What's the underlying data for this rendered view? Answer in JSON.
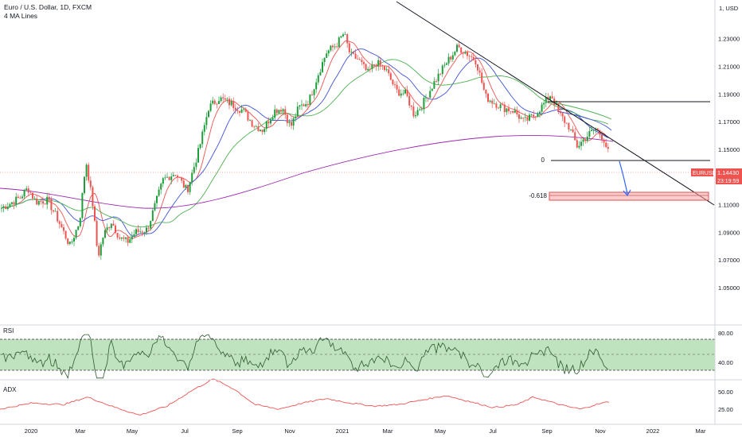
{
  "header": {
    "symbol": "Euro / U.S. Dollar, 1D, FXCM",
    "indicator": "4 MA Lines"
  },
  "price_axis": {
    "unit_label": "1, USD",
    "ticks": [
      "1.23000",
      "1.21000",
      "1.19000",
      "1.17000",
      "1.15000",
      "1.13000",
      "1.11000",
      "1.09000",
      "1.07000",
      "1.05000"
    ]
  },
  "price_tag": {
    "symbol": "EURUSD",
    "price": "1.14430",
    "countdown": "23:19:59"
  },
  "fib": {
    "level0": "0",
    "level_ext": "-0.618"
  },
  "rsi": {
    "label": "RSI",
    "ticks": [
      "80.00",
      "40.00"
    ]
  },
  "adx": {
    "label": "ADX",
    "ticks": [
      "50.00",
      "25.00"
    ]
  },
  "x_axis": {
    "ticks": [
      "2020",
      "Mar",
      "May",
      "Jul",
      "Sep",
      "Nov",
      "2021",
      "Mar",
      "May",
      "Jul",
      "Sep",
      "Nov",
      "2022",
      "Mar"
    ]
  },
  "colors": {
    "up": "#26a69a",
    "up_fill": "#1e9e3b",
    "down": "#ef5350",
    "ma_red": "#ef5350",
    "ma_blue": "#3f51d8",
    "ma_green": "#4caf50",
    "ma_purple": "#9c27b0",
    "rsi_band": "#a9d8a9",
    "adx_line": "#ef5350",
    "zone": "#f4a6a6",
    "arrow": "#2962ff"
  },
  "chart_data": [
    {
      "type": "line",
      "title": "Euro / U.S. Dollar, 1D, FXCM",
      "series": [
        {
          "name": "EURUSD close",
          "x": [
            "2019-12",
            "2020-01",
            "2020-02",
            "2020-03",
            "2020-04",
            "2020-05",
            "2020-06",
            "2020-07",
            "2020-08",
            "2020-09",
            "2020-10",
            "2020-11",
            "2020-12",
            "2021-01",
            "2021-02",
            "2021-03",
            "2021-04",
            "2021-05",
            "2021-06",
            "2021-07",
            "2021-08",
            "2021-09",
            "2021-10",
            "2021-11"
          ],
          "values": [
            1.112,
            1.111,
            1.105,
            1.095,
            1.088,
            1.095,
            1.125,
            1.138,
            1.185,
            1.178,
            1.168,
            1.192,
            1.219,
            1.212,
            1.207,
            1.18,
            1.2,
            1.22,
            1.186,
            1.187,
            1.176,
            1.157,
            1.157,
            1.144
          ]
        }
      ],
      "ylim": [
        1.05,
        1.24
      ]
    },
    {
      "type": "line",
      "series": [
        {
          "name": "RSI"
        }
      ],
      "ylim": [
        20,
        90
      ]
    },
    {
      "type": "line",
      "series": [
        {
          "name": "ADX"
        }
      ],
      "ylim": [
        0,
        70
      ]
    }
  ]
}
